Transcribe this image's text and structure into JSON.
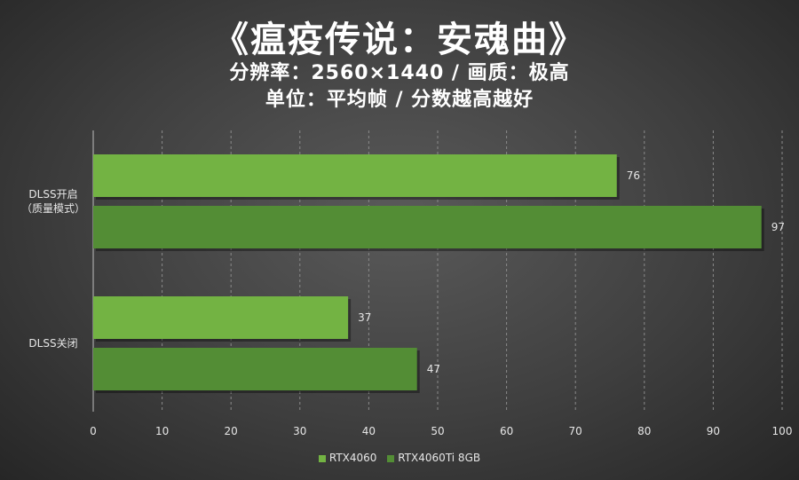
{
  "header": {
    "title": "《瘟疫传说：安魂曲》",
    "subtitle_line1": "分辨率：2560×1440 / 画质：极高",
    "subtitle_line2": "单位：平均帧 / 分数越高越好"
  },
  "colors": {
    "rtx4060": "#73b343",
    "rtx4060ti": "#538d35"
  },
  "chart_data": {
    "type": "bar",
    "orientation": "horizontal",
    "categories": [
      "DLSS开启（质量模式）",
      "DLSS关闭"
    ],
    "category_label_lines": [
      [
        "DLSS开启",
        "（质量模式）"
      ],
      [
        "DLSS关闭"
      ]
    ],
    "series": [
      {
        "name": "RTX4060",
        "values": [
          76,
          37
        ]
      },
      {
        "name": "RTX4060Ti 8GB",
        "values": [
          97,
          47
        ]
      }
    ],
    "xlim": [
      0,
      100
    ],
    "xticks": [
      0,
      10,
      20,
      30,
      40,
      50,
      60,
      70,
      80,
      90,
      100
    ],
    "grid": "vertical-dashed",
    "legend_position": "bottom",
    "data_labels": true
  }
}
